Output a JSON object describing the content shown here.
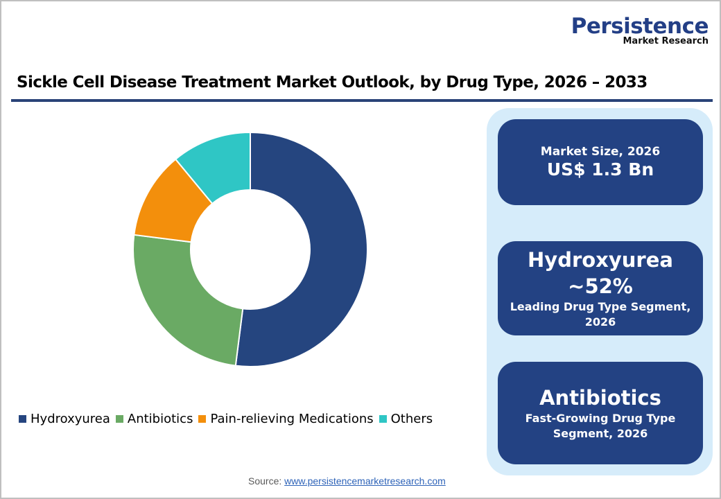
{
  "brand": {
    "name": "Persistence",
    "subtitle": "Market Research"
  },
  "title": "Sickle Cell Disease Treatment Market Outlook, by Drug Type, 2026 – 2033",
  "chart_data": {
    "type": "pie",
    "variant": "donut",
    "title": "Sickle Cell Disease Treatment Market Outlook, by Drug Type, 2026 – 2033",
    "categories": [
      "Hydroxyurea",
      "Antibiotics",
      "Pain-relieving Medications",
      "Others"
    ],
    "values": [
      52,
      25,
      12,
      11
    ],
    "unit": "%",
    "colors": [
      "#25457f",
      "#6aaa64",
      "#f38f0c",
      "#2fc6c5"
    ],
    "legend_position": "bottom",
    "start_angle_deg": 0,
    "direction": "clockwise"
  },
  "legend": [
    {
      "label": "Hydroxyurea",
      "color": "#25457f"
    },
    {
      "label": "Antibiotics",
      "color": "#6aaa64"
    },
    {
      "label": "Pain-relieving Medications",
      "color": "#f38f0c"
    },
    {
      "label": "Others",
      "color": "#2fc6c5"
    }
  ],
  "cards": [
    {
      "line1": "Market Size, 2026",
      "line2": "US$ 1.3 Bn"
    },
    {
      "line1": "Hydroxyurea",
      "line2": "~52%",
      "line3": "Leading Drug Type Segment,",
      "line4": "2026"
    },
    {
      "line1": "Antibiotics",
      "line2": "Fast-Growing Drug Type",
      "line3": "Segment, 2026"
    }
  ],
  "source": {
    "label": "Source:",
    "link": "www.persistencemarketresearch.com"
  }
}
